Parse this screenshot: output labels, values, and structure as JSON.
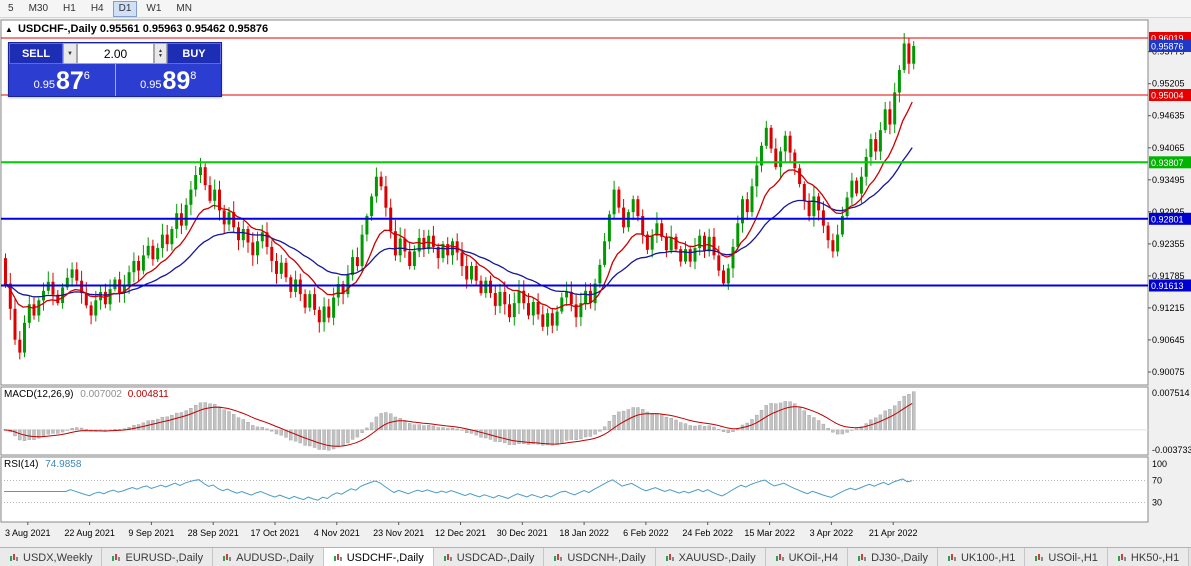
{
  "toolbar": {
    "timeframes": [
      "5",
      "M30",
      "H1",
      "H4",
      "D1",
      "W1",
      "MN"
    ],
    "active": "D1"
  },
  "icons": {
    "title_marker": "▲",
    "dropdown": "▼",
    "spin_up": "▲",
    "spin_down": "▼"
  },
  "chart": {
    "title": "USDCHF-,Daily",
    "ohlc_text": "0.95561 0.95963 0.95462 0.95876",
    "trade_panel": {
      "sell_label": "SELL",
      "buy_label": "BUY",
      "volume": "2.00",
      "sell_price": {
        "prefix": "0.95",
        "big": "87",
        "sup": "6"
      },
      "buy_price": {
        "prefix": "0.95",
        "big": "89",
        "sup": "8"
      }
    }
  },
  "macd": {
    "label": "MACD(12,26,9)",
    "value_main": "0.007002",
    "value_signal": "0.004811",
    "axis_top": "0.007514",
    "axis_bottom": "-0.003733"
  },
  "rsi": {
    "label": "RSI(14)",
    "value": "74.9858"
  },
  "tabs": {
    "active": "USDCHF-,Daily",
    "items": [
      "USDX,Weekly",
      "EURUSD-,Daily",
      "AUDUSD-,Daily",
      "USDCHF-,Daily",
      "USDCAD-,Daily",
      "USDCNH-,Daily",
      "XAUUSD-,Daily",
      "UKOil-,H4",
      "DJ30-,Daily",
      "UK100-,H1",
      "USOil-,H1",
      "HK50-,H1"
    ],
    "icon_colors": {
      "up": "#2e9e4f",
      "down": "#c94040",
      "neutral": "#888888"
    }
  },
  "theme": {
    "candle_up": "#009a00",
    "candle_down": "#dd0000",
    "macd_bar": "#c2c2c2",
    "macd_bar_edge": "#9e9e9e",
    "macd_signal": "#c00000",
    "rsi_line": "#4a9cc9",
    "pane_bg": "#ffffff",
    "pane_border": "#8a8a8a",
    "window_bg": "#f0f0f0",
    "current_price_badge": "#2038c8"
  },
  "chart_data": {
    "type": "candlestick",
    "symbol": "USDCHF-",
    "timeframe": "Daily",
    "last_ohlc": {
      "open": 0.95561,
      "high": 0.95963,
      "low": 0.95462,
      "close": 0.95876
    },
    "recent_high": 0.96019,
    "y_range": [
      0.89843,
      0.96339
    ],
    "y_ticks": [
      0.95775,
      0.95205,
      0.94635,
      0.94065,
      0.93495,
      0.92925,
      0.92355,
      0.91785,
      0.91215,
      0.90645,
      0.90075
    ],
    "badges": [
      {
        "price": 0.96019,
        "color": "#e80000"
      },
      {
        "price": 0.95876,
        "color": "#2038c8"
      },
      {
        "price": 0.95004,
        "color": "#e80000"
      },
      {
        "price": 0.93807,
        "color": "#00b400"
      },
      {
        "price": 0.92801,
        "color": "#0000d0"
      },
      {
        "price": 0.91613,
        "color": "#0000d0"
      }
    ],
    "levels": [
      {
        "price": 0.96019,
        "color": "#e80000",
        "width": 1
      },
      {
        "price": 0.95004,
        "color": "#e80000",
        "width": 1
      },
      {
        "price": 0.93807,
        "color": "#00ce00",
        "width": 2
      },
      {
        "price": 0.92801,
        "color": "#0000e8",
        "width": 2
      },
      {
        "price": 0.91613,
        "color": "#0000e8",
        "width": 2
      }
    ],
    "x_tick_idx": [
      5,
      18,
      31,
      44,
      57,
      70,
      83,
      96,
      109,
      122,
      135,
      148,
      161,
      174,
      187
    ],
    "x_tick_dates": [
      "3 Aug 2021",
      "22 Aug 2021",
      "9 Sep 2021",
      "28 Sep 2021",
      "17 Oct 2021",
      "4 Nov 2021",
      "23 Nov 2021",
      "12 Dec 2021",
      "30 Dec 2021",
      "18 Jan 2022",
      "6 Feb 2022",
      "24 Feb 2022",
      "15 Mar 2022",
      "3 Apr 2022",
      "21 Apr 2022"
    ],
    "ma_fast": {
      "period": 12,
      "color": "#cc0000"
    },
    "ma_slow": {
      "period": 30,
      "color": "#16169a"
    },
    "indicators": {
      "macd": {
        "params": "12,26,9",
        "last_main": 0.007002,
        "last_signal": 0.004811,
        "axis_max": 0.007514,
        "axis_min": -0.003733
      },
      "rsi": {
        "params": "14",
        "last": 74.9858,
        "levels": [
          100,
          70,
          30
        ]
      }
    },
    "closes": [
      0.9165,
      0.912,
      0.9065,
      0.9042,
      0.9095,
      0.9128,
      0.9108,
      0.9135,
      0.9152,
      0.9168,
      0.9145,
      0.913,
      0.9158,
      0.9175,
      0.919,
      0.917,
      0.9148,
      0.9126,
      0.9108,
      0.9135,
      0.915,
      0.9128,
      0.9155,
      0.9172,
      0.9148,
      0.9162,
      0.9185,
      0.9205,
      0.9188,
      0.9215,
      0.9232,
      0.9208,
      0.9228,
      0.9252,
      0.9235,
      0.9262,
      0.929,
      0.9268,
      0.9305,
      0.9332,
      0.9358,
      0.9372,
      0.934,
      0.9312,
      0.9332,
      0.9295,
      0.927,
      0.9292,
      0.9265,
      0.9242,
      0.9262,
      0.9238,
      0.9215,
      0.924,
      0.9256,
      0.923,
      0.9205,
      0.9182,
      0.9202,
      0.9176,
      0.915,
      0.9172,
      0.9146,
      0.9122,
      0.9146,
      0.9118,
      0.9096,
      0.9124,
      0.9104,
      0.914,
      0.9164,
      0.9146,
      0.918,
      0.9212,
      0.9196,
      0.9252,
      0.9285,
      0.932,
      0.9355,
      0.9338,
      0.93,
      0.9258,
      0.9215,
      0.9245,
      0.9222,
      0.9196,
      0.9222,
      0.9246,
      0.9226,
      0.925,
      0.923,
      0.921,
      0.9235,
      0.9215,
      0.924,
      0.922,
      0.9196,
      0.9172,
      0.9196,
      0.917,
      0.9148,
      0.917,
      0.9148,
      0.9125,
      0.915,
      0.9128,
      0.9105,
      0.913,
      0.9152,
      0.913,
      0.9108,
      0.9132,
      0.911,
      0.9088,
      0.9112,
      0.909,
      0.9115,
      0.914,
      0.915,
      0.9128,
      0.9105,
      0.913,
      0.9152,
      0.913,
      0.9165,
      0.9198,
      0.924,
      0.9288,
      0.9332,
      0.93,
      0.9265,
      0.9292,
      0.9315,
      0.9285,
      0.9252,
      0.9225,
      0.925,
      0.9272,
      0.9248,
      0.9224,
      0.9248,
      0.9226,
      0.9204,
      0.9226,
      0.9204,
      0.9228,
      0.925,
      0.9222,
      0.9248,
      0.9215,
      0.9188,
      0.9165,
      0.9192,
      0.923,
      0.9272,
      0.9315,
      0.9292,
      0.9338,
      0.9375,
      0.941,
      0.9442,
      0.9405,
      0.9372,
      0.94,
      0.9428,
      0.9398,
      0.937,
      0.9342,
      0.9312,
      0.9285,
      0.932,
      0.9295,
      0.9268,
      0.9242,
      0.9222,
      0.9252,
      0.9285,
      0.9318,
      0.9348,
      0.9325,
      0.9355,
      0.939,
      0.9422,
      0.94,
      0.9438,
      0.9475,
      0.9448,
      0.9505,
      0.9545,
      0.9592,
      0.9556,
      0.95876
    ]
  }
}
